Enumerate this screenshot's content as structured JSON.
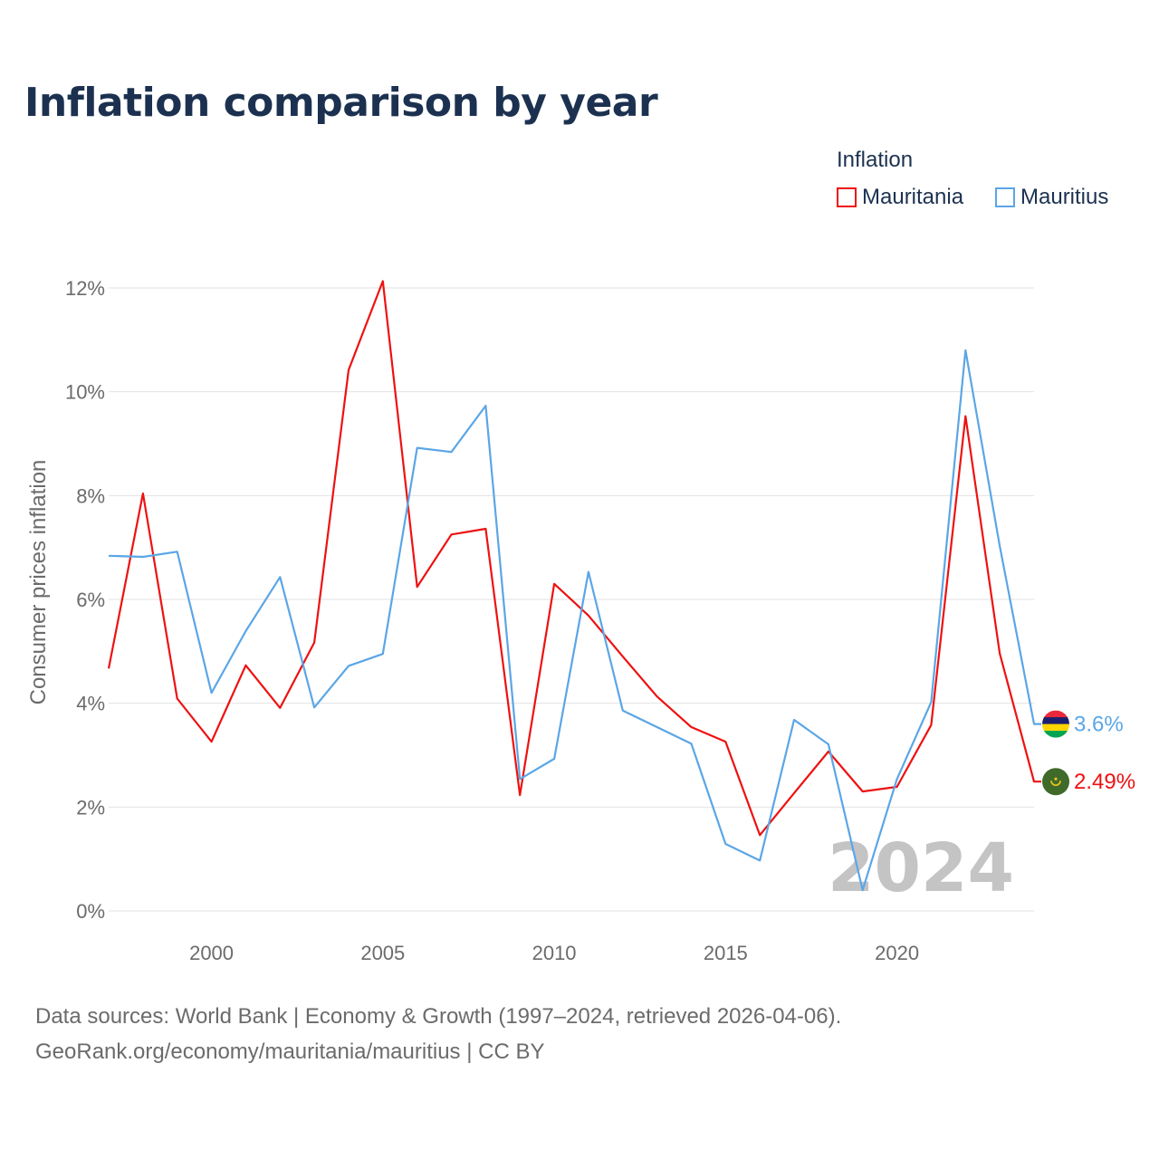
{
  "title": "Inflation comparison by year",
  "legend": {
    "title": "Inflation",
    "items": [
      {
        "name": "Mauritania",
        "color": "#ee1111"
      },
      {
        "name": "Mauritius",
        "color": "#5ba6e6"
      }
    ]
  },
  "sources": {
    "line1": "Data sources: World Bank | Economy & Growth (1997–2024, retrieved 2026-04-06).",
    "line2": "GeoRank.org/economy/mauritania/mauritius | CC BY"
  },
  "chart_data": {
    "type": "line",
    "title": "Inflation comparison by year",
    "xlabel": "",
    "ylabel": "Consumer prices inflation",
    "xlim": [
      1997,
      2024
    ],
    "ylim": [
      0,
      12
    ],
    "x_ticks": [
      2000,
      2005,
      2010,
      2015,
      2020
    ],
    "y_ticks": [
      0,
      2,
      4,
      6,
      8,
      10,
      12
    ],
    "y_tick_labels": [
      "0%",
      "2%",
      "4%",
      "6%",
      "8%",
      "10%",
      "12%"
    ],
    "grid": true,
    "year_watermark": "2024",
    "x": [
      1997,
      1998,
      1999,
      2000,
      2001,
      2002,
      2003,
      2004,
      2005,
      2006,
      2007,
      2008,
      2009,
      2010,
      2011,
      2012,
      2013,
      2014,
      2015,
      2016,
      2017,
      2018,
      2019,
      2020,
      2021,
      2022,
      2023,
      2024
    ],
    "series": [
      {
        "name": "Mauritania",
        "color": "#ee1111",
        "end_label": "2.49%",
        "values": [
          4.67,
          8.04,
          4.09,
          3.26,
          4.73,
          3.91,
          5.17,
          10.42,
          12.13,
          6.24,
          7.25,
          7.36,
          2.23,
          6.3,
          5.69,
          4.9,
          4.13,
          3.54,
          3.26,
          1.46,
          2.27,
          3.07,
          2.3,
          2.39,
          3.58,
          9.53,
          4.96,
          2.49
        ]
      },
      {
        "name": "Mauritius",
        "color": "#5ba6e6",
        "end_label": "3.6%",
        "values": [
          6.84,
          6.82,
          6.92,
          4.2,
          5.39,
          6.43,
          3.92,
          4.72,
          4.95,
          8.92,
          8.84,
          9.73,
          2.54,
          2.93,
          6.53,
          3.86,
          3.54,
          3.22,
          1.29,
          0.97,
          3.68,
          3.21,
          0.4,
          2.54,
          4.02,
          10.8,
          7.03,
          3.6
        ]
      }
    ]
  }
}
